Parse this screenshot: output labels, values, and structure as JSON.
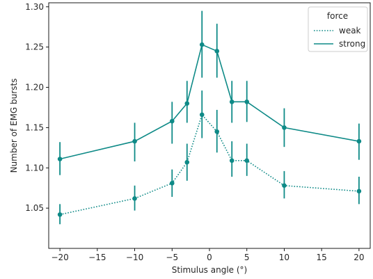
{
  "chart_data": {
    "type": "line",
    "xlabel": "Stimulus angle (°)",
    "ylabel": "Number of EMG bursts",
    "xlim": [
      -21.5,
      21.5
    ],
    "ylim": [
      1.0,
      1.305
    ],
    "xticks": [
      -20,
      -15,
      -10,
      -5,
      0,
      5,
      10,
      15,
      20
    ],
    "yticks": [
      1.05,
      1.1,
      1.15,
      1.2,
      1.25,
      1.3
    ],
    "x": [
      -20,
      -10,
      -5,
      -3,
      -1,
      1,
      3,
      5,
      10,
      20
    ],
    "legend": {
      "title": "force",
      "placement": "top-right"
    },
    "color": "#0e8a87",
    "grid": false,
    "series": [
      {
        "name": "weak",
        "line_style": "dotted",
        "values": [
          1.042,
          1.062,
          1.081,
          1.107,
          1.166,
          1.145,
          1.109,
          1.109,
          1.078,
          1.071
        ],
        "err_low": [
          1.03,
          1.047,
          1.064,
          1.084,
          1.137,
          1.119,
          1.089,
          1.09,
          1.062,
          1.055
        ],
        "err_high": [
          1.055,
          1.078,
          1.098,
          1.13,
          1.196,
          1.172,
          1.133,
          1.13,
          1.096,
          1.089
        ]
      },
      {
        "name": "strong",
        "line_style": "solid",
        "values": [
          1.111,
          1.133,
          1.158,
          1.18,
          1.253,
          1.245,
          1.182,
          1.182,
          1.15,
          1.133
        ],
        "err_low": [
          1.091,
          1.108,
          1.13,
          1.156,
          1.212,
          1.212,
          1.156,
          1.157,
          1.126,
          1.11
        ],
        "err_high": [
          1.132,
          1.156,
          1.182,
          1.208,
          1.295,
          1.279,
          1.208,
          1.208,
          1.174,
          1.155
        ]
      }
    ]
  }
}
